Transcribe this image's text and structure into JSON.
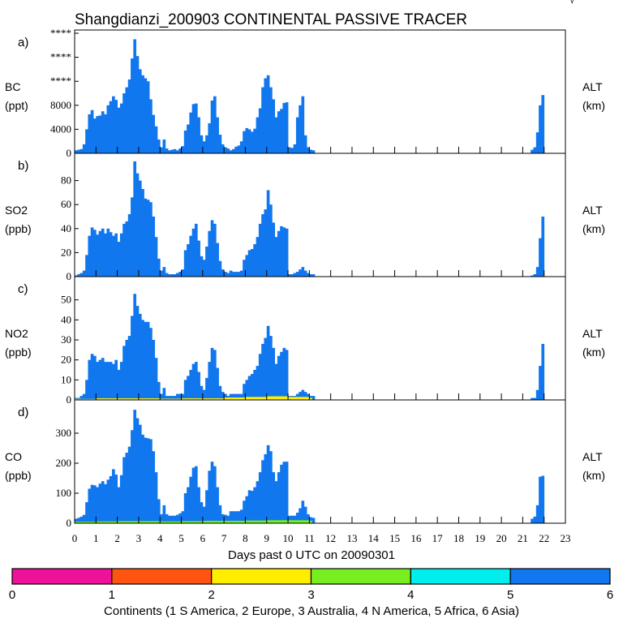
{
  "figure": {
    "title": "Shangdianzi_200903 CONTINENTAL PASSIVE TRACER",
    "corner_mark": "√",
    "xlabel": "Days past 0 UTC on 20090301",
    "x_ticks": [
      0,
      1,
      2,
      3,
      4,
      5,
      6,
      7,
      8,
      9,
      10,
      11,
      12,
      13,
      14,
      15,
      16,
      17,
      18,
      19,
      20,
      21,
      22,
      23
    ],
    "colors": {
      "continent_0": "#ee1199",
      "continent_1": "#ff5511",
      "continent_2": "#ffee00",
      "continent_3": "#77ee22",
      "continent_4": "#00eeee",
      "continent_5": "#1177ee"
    }
  },
  "legend": {
    "title": "Continents (1 S America, 2 Europe, 3 Australia, 4 N America, 5 Africa, 6 Asia)",
    "ticks": [
      "0",
      "1",
      "2",
      "3",
      "4",
      "5",
      "6"
    ]
  },
  "chart_data": [
    {
      "type": "area",
      "panel": "a)",
      "species": "BC",
      "unit": "(ppt)",
      "right_label": "ALT",
      "right_unit": "(km)",
      "yticks": [
        {
          "value": 0,
          "label": "0"
        },
        {
          "value": 4000,
          "label": "4000"
        },
        {
          "value": 8000,
          "label": "8000"
        },
        {
          "value": 12000,
          "label": "****"
        },
        {
          "value": 16000,
          "label": "****"
        },
        {
          "value": 20000,
          "label": "****"
        }
      ],
      "ylim": [
        0,
        20000
      ],
      "xlim": [
        0,
        23
      ],
      "series": [
        {
          "name": "Asia",
          "color_key": "continent_5",
          "x": [
            0,
            0.125,
            0.25,
            0.375,
            0.5,
            0.625,
            0.75,
            0.875,
            1,
            1.125,
            1.25,
            1.375,
            1.5,
            1.625,
            1.75,
            1.875,
            2,
            2.125,
            2.25,
            2.375,
            2.5,
            2.625,
            2.75,
            2.875,
            3,
            3.125,
            3.25,
            3.375,
            3.5,
            3.625,
            3.75,
            3.875,
            4,
            4.125,
            4.25,
            4.375,
            4.5,
            4.625,
            4.75,
            4.875,
            5,
            5.125,
            5.25,
            5.375,
            5.5,
            5.625,
            5.75,
            5.875,
            6,
            6.125,
            6.25,
            6.375,
            6.5,
            6.625,
            6.75,
            6.875,
            7,
            7.125,
            7.25,
            7.375,
            7.5,
            7.625,
            7.75,
            7.875,
            8,
            8.125,
            8.25,
            8.375,
            8.5,
            8.625,
            8.75,
            8.875,
            9,
            9.125,
            9.25,
            9.375,
            9.5,
            9.625,
            9.75,
            9.875,
            10,
            10.125,
            10.25,
            10.375,
            10.5,
            10.625,
            10.75,
            10.875,
            11,
            11.125,
            21.375,
            21.5,
            21.625,
            21.75,
            21.875,
            22
          ],
          "y": [
            500,
            600,
            700,
            1500,
            4000,
            6500,
            7200,
            5800,
            6200,
            6300,
            7000,
            6500,
            8000,
            8700,
            9500,
            8900,
            7600,
            8300,
            10000,
            11000,
            12300,
            15800,
            19000,
            16200,
            14000,
            13000,
            12500,
            12000,
            9000,
            6400,
            4500,
            2300,
            1000,
            2300,
            800,
            500,
            600,
            700,
            500,
            800,
            1200,
            3800,
            4800,
            6800,
            8200,
            8300,
            6000,
            3000,
            2000,
            3000,
            5000,
            8800,
            9500,
            6000,
            3100,
            1500,
            1000,
            800,
            500,
            700,
            1100,
            1300,
            2000,
            3700,
            4200,
            4000,
            3600,
            4100,
            6000,
            7500,
            11000,
            12500,
            13000,
            11000,
            9000,
            6000,
            7000,
            7400,
            8400,
            8500,
            1000,
            900,
            1500,
            6000,
            8000,
            9500,
            3000,
            1000,
            600,
            500,
            600,
            1000,
            3500,
            8000,
            9700,
            0
          ]
        }
      ]
    },
    {
      "type": "area",
      "panel": "b)",
      "species": "SO2",
      "unit": "(ppb)",
      "right_label": "ALT",
      "right_unit": "(km)",
      "yticks": [
        {
          "value": 0,
          "label": "0"
        },
        {
          "value": 20,
          "label": "20"
        },
        {
          "value": 40,
          "label": "40"
        },
        {
          "value": 60,
          "label": "60"
        },
        {
          "value": 80,
          "label": "80"
        }
      ],
      "ylim": [
        0,
        100
      ],
      "xlim": [
        0,
        23
      ],
      "series": [
        {
          "name": "Asia",
          "color_key": "continent_5",
          "x": [
            0,
            0.125,
            0.25,
            0.375,
            0.5,
            0.625,
            0.75,
            0.875,
            1,
            1.125,
            1.25,
            1.375,
            1.5,
            1.625,
            1.75,
            1.875,
            2,
            2.125,
            2.25,
            2.375,
            2.5,
            2.625,
            2.75,
            2.875,
            3,
            3.125,
            3.25,
            3.375,
            3.5,
            3.625,
            3.75,
            3.875,
            4,
            4.125,
            4.25,
            4.375,
            4.5,
            4.625,
            4.75,
            4.875,
            5,
            5.125,
            5.25,
            5.375,
            5.5,
            5.625,
            5.75,
            5.875,
            6,
            6.125,
            6.25,
            6.375,
            6.5,
            6.625,
            6.75,
            6.875,
            7,
            7.125,
            7.25,
            7.375,
            7.5,
            7.625,
            7.75,
            7.875,
            8,
            8.125,
            8.25,
            8.375,
            8.5,
            8.625,
            8.75,
            8.875,
            9,
            9.125,
            9.25,
            9.375,
            9.5,
            9.625,
            9.75,
            9.875,
            10,
            10.125,
            10.25,
            10.375,
            10.5,
            10.625,
            10.75,
            10.875,
            11,
            11.125,
            21.375,
            21.5,
            21.625,
            21.75,
            21.875,
            22
          ],
          "y": [
            1,
            2,
            3,
            5,
            18,
            34,
            41,
            39,
            35,
            38,
            40,
            36,
            40,
            37,
            34,
            36,
            29,
            36,
            44,
            46,
            52,
            66,
            96,
            86,
            80,
            73,
            65,
            64,
            62,
            50,
            33,
            15,
            5,
            8,
            3,
            2,
            2,
            2,
            3,
            4,
            6,
            22,
            27,
            34,
            40,
            44,
            30,
            17,
            14,
            25,
            38,
            47,
            44,
            28,
            13,
            6,
            4,
            3,
            5,
            4,
            4,
            4,
            5,
            14,
            18,
            22,
            23,
            27,
            33,
            44,
            52,
            56,
            72,
            60,
            45,
            33,
            38,
            42,
            41,
            40,
            2,
            2,
            3,
            4,
            6,
            8,
            5,
            3,
            2,
            2,
            1,
            2,
            8,
            32,
            50,
            0
          ]
        }
      ]
    },
    {
      "type": "area",
      "panel": "c)",
      "species": "NO2",
      "unit": "(ppb)",
      "right_label": "ALT",
      "right_unit": "(km)",
      "yticks": [
        {
          "value": 0,
          "label": "0"
        },
        {
          "value": 10,
          "label": "10"
        },
        {
          "value": 20,
          "label": "20"
        },
        {
          "value": 30,
          "label": "30"
        },
        {
          "value": 40,
          "label": "40"
        },
        {
          "value": 50,
          "label": "50"
        }
      ],
      "ylim": [
        0,
        60
      ],
      "xlim": [
        0,
        23
      ],
      "series": [
        {
          "name": "Asia",
          "color_key": "continent_5",
          "x": [
            0,
            0.125,
            0.25,
            0.375,
            0.5,
            0.625,
            0.75,
            0.875,
            1,
            1.125,
            1.25,
            1.375,
            1.5,
            1.625,
            1.75,
            1.875,
            2,
            2.125,
            2.25,
            2.375,
            2.5,
            2.625,
            2.75,
            2.875,
            3,
            3.125,
            3.25,
            3.375,
            3.5,
            3.625,
            3.75,
            3.875,
            4,
            4.125,
            4.25,
            4.375,
            4.5,
            4.625,
            4.75,
            4.875,
            5,
            5.125,
            5.25,
            5.375,
            5.5,
            5.625,
            5.75,
            5.875,
            6,
            6.125,
            6.25,
            6.375,
            6.5,
            6.625,
            6.75,
            6.875,
            7,
            7.125,
            7.25,
            7.375,
            7.5,
            7.625,
            7.75,
            7.875,
            8,
            8.125,
            8.25,
            8.375,
            8.5,
            8.625,
            8.75,
            8.875,
            9,
            9.125,
            9.25,
            9.375,
            9.5,
            9.625,
            9.75,
            9.875,
            10,
            10.125,
            10.25,
            10.375,
            10.5,
            10.625,
            10.75,
            10.875,
            11,
            11.125,
            21.375,
            21.5,
            21.625,
            21.75,
            21.875,
            22
          ],
          "y": [
            1,
            1,
            2,
            3,
            10,
            20,
            23,
            22,
            19,
            20,
            21,
            19,
            19,
            19,
            18,
            20,
            15,
            19,
            27,
            30,
            32,
            42,
            53,
            47,
            43,
            40,
            39,
            39,
            36,
            30,
            21,
            9,
            3,
            6,
            2,
            2,
            2,
            2,
            3,
            3,
            3,
            10,
            12,
            15,
            18,
            19,
            14,
            7,
            5,
            11,
            19,
            26,
            25,
            16,
            7,
            4,
            3,
            2,
            3,
            3,
            3,
            3,
            3,
            8,
            10,
            12,
            13,
            15,
            17,
            23,
            28,
            31,
            37,
            32,
            26,
            18,
            22,
            24,
            26,
            25,
            2,
            2,
            2,
            3,
            4,
            5,
            4,
            3,
            2,
            2,
            1,
            1,
            5,
            17,
            28,
            0
          ]
        },
        {
          "name": "S America + Europe + Australia + N America",
          "color_key": "continent_2",
          "note": "small mixed contribution near the baseline",
          "x": [
            0,
            1,
            2,
            3,
            4,
            5,
            6,
            7,
            8,
            9,
            10,
            11,
            11.125
          ],
          "y": [
            0.5,
            0.8,
            0.8,
            0.8,
            0.6,
            0.8,
            0.8,
            1.2,
            1.5,
            1.8,
            1.5,
            1,
            0
          ]
        }
      ]
    },
    {
      "type": "area",
      "panel": "d)",
      "species": "CO",
      "unit": "(ppb)",
      "right_label": "ALT",
      "right_unit": "(km)",
      "yticks": [
        {
          "value": 0,
          "label": "0"
        },
        {
          "value": 100,
          "label": "100"
        },
        {
          "value": 200,
          "label": "200"
        },
        {
          "value": 300,
          "label": "300"
        }
      ],
      "ylim": [
        0,
        400
      ],
      "xlim": [
        0,
        23
      ],
      "series": [
        {
          "name": "Asia",
          "color_key": "continent_5",
          "x": [
            0,
            0.125,
            0.25,
            0.375,
            0.5,
            0.625,
            0.75,
            0.875,
            1,
            1.125,
            1.25,
            1.375,
            1.5,
            1.625,
            1.75,
            1.875,
            2,
            2.125,
            2.25,
            2.375,
            2.5,
            2.625,
            2.75,
            2.875,
            3,
            3.125,
            3.25,
            3.375,
            3.5,
            3.625,
            3.75,
            3.875,
            4,
            4.125,
            4.25,
            4.375,
            4.5,
            4.625,
            4.75,
            4.875,
            5,
            5.125,
            5.25,
            5.375,
            5.5,
            5.625,
            5.75,
            5.875,
            6,
            6.125,
            6.25,
            6.375,
            6.5,
            6.625,
            6.75,
            6.875,
            7,
            7.125,
            7.25,
            7.375,
            7.5,
            7.625,
            7.75,
            7.875,
            8,
            8.125,
            8.25,
            8.375,
            8.5,
            8.625,
            8.75,
            8.875,
            9,
            9.125,
            9.25,
            9.375,
            9.5,
            9.625,
            9.75,
            9.875,
            10,
            10.125,
            10.25,
            10.375,
            10.5,
            10.625,
            10.75,
            10.875,
            11,
            11.125,
            21.375,
            21.5,
            21.625,
            21.75,
            21.875,
            22
          ],
          "y": [
            15,
            18,
            22,
            28,
            70,
            115,
            128,
            126,
            120,
            132,
            140,
            130,
            145,
            157,
            180,
            162,
            120,
            160,
            220,
            235,
            255,
            310,
            378,
            350,
            328,
            295,
            285,
            283,
            280,
            240,
            170,
            80,
            30,
            60,
            30,
            25,
            25,
            25,
            28,
            33,
            40,
            100,
            120,
            155,
            185,
            190,
            120,
            70,
            55,
            110,
            175,
            205,
            190,
            120,
            60,
            30,
            28,
            25,
            40,
            40,
            40,
            40,
            45,
            75,
            90,
            110,
            108,
            120,
            140,
            170,
            210,
            230,
            260,
            240,
            170,
            140,
            170,
            195,
            205,
            205,
            25,
            25,
            25,
            35,
            50,
            75,
            55,
            30,
            20,
            18,
            15,
            22,
            60,
            155,
            158,
            0
          ]
        },
        {
          "name": "S America + Europe + Australia + N America",
          "color_key": "continent_3",
          "note": "small mixed contribution near the baseline",
          "x": [
            0,
            1,
            2,
            3,
            4,
            5,
            6,
            7,
            8,
            9,
            10,
            11,
            11.125
          ],
          "y": [
            5,
            6,
            7,
            7,
            6,
            7,
            8,
            8,
            9,
            10,
            10,
            8,
            0
          ]
        }
      ]
    }
  ]
}
